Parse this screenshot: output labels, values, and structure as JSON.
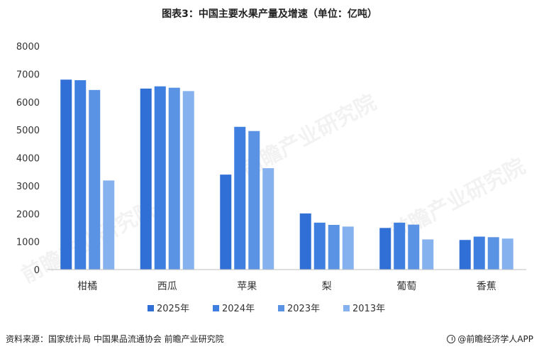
{
  "chart_data": {
    "type": "bar",
    "title": "图表3：中国主要水果产量及增速（单位：亿吨）",
    "categories": [
      "柑橘",
      "西瓜",
      "苹果",
      "梨",
      "葡萄",
      "香蕉"
    ],
    "series": [
      {
        "name": "2025年",
        "color": "#2f6fd6",
        "values": [
          6800,
          6480,
          3400,
          2010,
          1490,
          1060
        ]
      },
      {
        "name": "2024年",
        "color": "#3f7fe0",
        "values": [
          6780,
          6560,
          5110,
          1680,
          1680,
          1180
        ]
      },
      {
        "name": "2023年",
        "color": "#5b93e4",
        "values": [
          6430,
          6510,
          4960,
          1600,
          1610,
          1160
        ]
      },
      {
        "name": "2013年",
        "color": "#85b2ef",
        "values": [
          3190,
          6390,
          3630,
          1540,
          1080,
          1110
        ]
      }
    ],
    "yticks": [
      "0",
      "1000",
      "2000",
      "3000",
      "4000",
      "5000",
      "6000",
      "7000",
      "8000"
    ],
    "ylim": [
      0,
      8000
    ],
    "grid": false,
    "legend_position": "bottom"
  },
  "footer": {
    "source": "资料来源：国家统计局 中国果品流通协会  前瞻产业研究院",
    "brand": "@前瞻经济学人APP"
  },
  "watermark": {
    "text": "前瞻产业研究院"
  }
}
